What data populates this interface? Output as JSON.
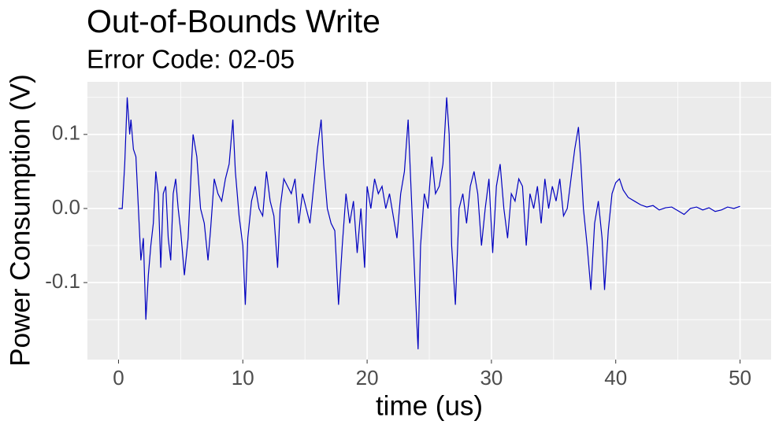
{
  "chart_data": {
    "type": "line",
    "title": "Out-of-Bounds Write",
    "subtitle": "Error Code: 02-05",
    "x_label": "time (us)",
    "y_label": "Power Consumption (V)",
    "xlim": [
      -2.5,
      52.5
    ],
    "xticks": [
      0,
      10,
      20,
      30,
      40,
      50
    ],
    "xminor_ticks": [
      5,
      15,
      25,
      35,
      45
    ],
    "ylim": [
      -0.204,
      0.171
    ],
    "yticks": [
      -0.1,
      {
        "value": 0,
        "label": "0.0"
      },
      0.1
    ],
    "yminor_ticks": [
      -0.15,
      -0.05,
      0.05,
      0.15
    ],
    "grid": true,
    "series": [
      {
        "color": "#0000c0",
        "x": [
          0,
          0.3,
          0.5,
          0.7,
          0.9,
          1.0,
          1.2,
          1.4,
          1.6,
          1.8,
          2.0,
          2.2,
          2.4,
          2.6,
          2.8,
          3.0,
          3.2,
          3.4,
          3.6,
          3.8,
          4.0,
          4.2,
          4.4,
          4.6,
          4.8,
          5.0,
          5.3,
          5.6,
          5.9,
          6.0,
          6.3,
          6.6,
          6.9,
          7.2,
          7.4,
          7.7,
          8.0,
          8.3,
          8.6,
          8.9,
          9.2,
          9.4,
          9.7,
          10.0,
          10.2,
          10.4,
          10.7,
          11.0,
          11.3,
          11.6,
          11.9,
          12.2,
          12.5,
          12.8,
          13.0,
          13.3,
          13.6,
          13.9,
          14.2,
          14.5,
          14.8,
          15.1,
          15.4,
          15.7,
          16.0,
          16.3,
          16.5,
          16.8,
          17.1,
          17.4,
          17.7,
          18.0,
          18.3,
          18.6,
          18.9,
          19.2,
          19.5,
          19.8,
          20.0,
          20.3,
          20.6,
          20.9,
          21.2,
          21.5,
          21.8,
          22.1,
          22.4,
          22.7,
          23.0,
          23.3,
          23.6,
          23.9,
          24.1,
          24.3,
          24.6,
          24.9,
          25.2,
          25.5,
          25.8,
          26.1,
          26.4,
          26.6,
          26.8,
          27.1,
          27.4,
          27.7,
          28.0,
          28.3,
          28.6,
          28.9,
          29.2,
          29.5,
          29.8,
          30.1,
          30.4,
          30.7,
          31.0,
          31.3,
          31.6,
          31.9,
          32.2,
          32.5,
          32.8,
          33.1,
          33.4,
          33.7,
          34.0,
          34.3,
          34.6,
          34.9,
          35.2,
          35.5,
          35.8,
          36.1,
          36.4,
          36.7,
          37.0,
          37.2,
          37.4,
          37.7,
          38.0,
          38.3,
          38.6,
          38.9,
          39.1,
          39.4,
          39.7,
          40.0,
          40.3,
          40.6,
          41.0,
          41.5,
          42.0,
          42.5,
          43.0,
          43.5,
          44.0,
          44.5,
          45.0,
          45.5,
          46.0,
          46.5,
          47.0,
          47.5,
          48.0,
          48.5,
          49.0,
          49.5,
          50.0
        ],
        "values": [
          0,
          0,
          0.06,
          0.15,
          0.1,
          0.12,
          0.08,
          0.07,
          0,
          -0.07,
          -0.04,
          -0.15,
          -0.09,
          -0.05,
          -0.02,
          0.05,
          0.02,
          -0.08,
          0.02,
          0.03,
          -0.04,
          -0.07,
          0.02,
          0.04,
          0,
          -0.03,
          -0.09,
          -0.04,
          0.07,
          0.1,
          0.07,
          0,
          -0.02,
          -0.07,
          -0.03,
          0.04,
          0.02,
          0.01,
          0.04,
          0.06,
          0.12,
          0.05,
          -0.01,
          -0.05,
          -0.13,
          -0.04,
          0.01,
          0.03,
          0,
          -0.01,
          0.05,
          0.01,
          -0.01,
          -0.08,
          0,
          0.04,
          0.03,
          0.02,
          0.04,
          -0.02,
          0.02,
          0,
          -0.02,
          0.03,
          0.08,
          0.12,
          0.06,
          0,
          -0.02,
          -0.03,
          -0.13,
          -0.05,
          0.02,
          -0.02,
          0.01,
          -0.06,
          0,
          -0.08,
          0.03,
          0,
          0.04,
          0.02,
          0.03,
          0,
          0.02,
          -0.01,
          -0.04,
          0.02,
          0.05,
          0.12,
          0,
          -0.12,
          -0.19,
          -0.05,
          0.02,
          0,
          0.07,
          0.02,
          0.03,
          0.06,
          0.15,
          0.1,
          -0.05,
          -0.13,
          0,
          0.02,
          -0.02,
          0.03,
          0.05,
          0.02,
          -0.05,
          0,
          0.04,
          -0.06,
          0.03,
          0.06,
          0,
          -0.04,
          0.02,
          0.01,
          0.04,
          0.03,
          -0.05,
          0.02,
          0,
          0.03,
          -0.02,
          0.04,
          0,
          0.03,
          0.01,
          0.04,
          -0.01,
          0,
          0.04,
          0.08,
          0.11,
          0.06,
          0,
          -0.05,
          -0.11,
          -0.02,
          0.01,
          -0.04,
          -0.11,
          -0.03,
          0.02,
          0.035,
          0.04,
          0.025,
          0.015,
          0.01,
          0.005,
          0.002,
          0.004,
          -0.002,
          0.001,
          0.002,
          -0.003,
          -0.008,
          0,
          0.002,
          -0.002,
          0.001,
          -0.004,
          -0.002,
          0.002,
          0,
          0.003
        ]
      }
    ]
  }
}
